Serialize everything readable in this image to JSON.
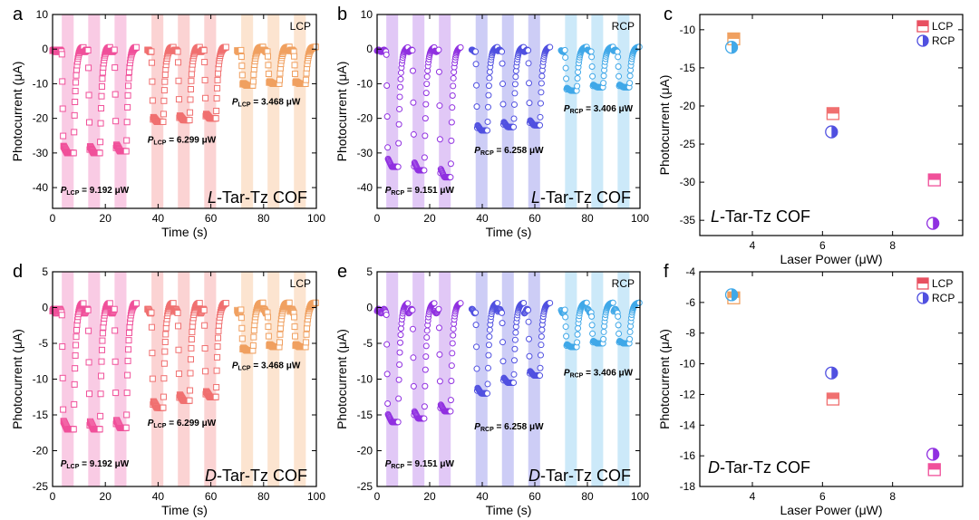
{
  "chart_data": [
    {
      "id": "a",
      "type": "scatter",
      "panel_label": "a",
      "polarization": "LCP",
      "marker": "square",
      "cof_label": {
        "prefix": "L",
        "suffix": "-Tar-Tz COF"
      },
      "xlabel": "Time (s)",
      "ylabel": "Photocurrent (μA)",
      "xlim": [
        0,
        100
      ],
      "ylim": [
        -46,
        10
      ],
      "xticks": [
        0,
        20,
        40,
        60,
        80,
        100
      ],
      "yticks": [
        -40,
        -30,
        -20,
        -10,
        0,
        10
      ],
      "groups": [
        {
          "color": "#f0509a",
          "band_color": "#f7b5d8",
          "power_text": "9.192 μW",
          "power_sub": "LCP",
          "power_at": [
            3,
            -41.5
          ],
          "pulses": [
            {
              "t_on": 3.5,
              "t_off": 8,
              "min": -30
            },
            {
              "t_on": 13.5,
              "t_off": 18,
              "min": -30
            },
            {
              "t_on": 23.5,
              "t_off": 28,
              "min": -29.5
            }
          ]
        },
        {
          "color": "#f07070",
          "band_color": "#fac0c0",
          "power_text": "6.299 μW",
          "power_sub": "LCP",
          "power_at": [
            36,
            -27
          ],
          "pulses": [
            {
              "t_on": 37.5,
              "t_off": 42,
              "min": -21
            },
            {
              "t_on": 47.5,
              "t_off": 52,
              "min": -20.5
            },
            {
              "t_on": 57.5,
              "t_off": 62,
              "min": -20
            }
          ]
        },
        {
          "color": "#f0a060",
          "band_color": "#fbd8bc",
          "power_text": "3.468 μW",
          "power_sub": "LCP",
          "power_at": [
            68,
            -16
          ],
          "pulses": [
            {
              "t_on": 71.5,
              "t_off": 76,
              "min": -10.5
            },
            {
              "t_on": 81.5,
              "t_off": 86,
              "min": -10
            },
            {
              "t_on": 91.5,
              "t_off": 96,
              "min": -10
            }
          ]
        }
      ]
    },
    {
      "id": "b",
      "type": "scatter",
      "panel_label": "b",
      "polarization": "RCP",
      "marker": "circle",
      "cof_label": {
        "prefix": "L",
        "suffix": "-Tar-Tz COF"
      },
      "xlabel": "Time (s)",
      "ylabel": "Photocurrent (μA)",
      "xlim": [
        0,
        100
      ],
      "ylim": [
        -46,
        10
      ],
      "xticks": [
        0,
        20,
        40,
        60,
        80,
        100
      ],
      "yticks": [
        -40,
        -30,
        -20,
        -10,
        0,
        10
      ],
      "groups": [
        {
          "color": "#9030e0",
          "band_color": "#d4b0f2",
          "power_text": "9.151 μW",
          "power_sub": "RCP",
          "power_at": [
            3,
            -41.5
          ],
          "pulses": [
            {
              "t_on": 3.5,
              "t_off": 8,
              "min": -34
            },
            {
              "t_on": 13.5,
              "t_off": 18,
              "min": -35
            },
            {
              "t_on": 23.5,
              "t_off": 28,
              "min": -37
            }
          ]
        },
        {
          "color": "#5050e0",
          "band_color": "#b8b8f2",
          "power_text": "6.258 μW",
          "power_sub": "RCP",
          "power_at": [
            37,
            -30
          ],
          "pulses": [
            {
              "t_on": 37.5,
              "t_off": 42,
              "min": -23.5
            },
            {
              "t_on": 47.5,
              "t_off": 52,
              "min": -22.5
            },
            {
              "t_on": 57.5,
              "t_off": 62,
              "min": -22
            }
          ]
        },
        {
          "color": "#40a8e8",
          "band_color": "#b6e0f6",
          "power_text": "3.406 μW",
          "power_sub": "RCP",
          "power_at": [
            71,
            -18
          ],
          "pulses": [
            {
              "t_on": 71.5,
              "t_off": 76,
              "min": -12
            },
            {
              "t_on": 81.5,
              "t_off": 86,
              "min": -11
            },
            {
              "t_on": 91.5,
              "t_off": 96,
              "min": -11
            }
          ]
        }
      ]
    },
    {
      "id": "c",
      "type": "scatter",
      "panel_label": "c",
      "cof_label": {
        "prefix": "L",
        "suffix": "-Tar-Tz COF"
      },
      "xlabel": "Laser Power (μW)",
      "ylabel": "Photocurrent (μA)",
      "xlim": [
        2.5,
        10
      ],
      "ylim": [
        -37,
        -8
      ],
      "xticks": [
        4,
        6,
        8
      ],
      "yticks": [
        -35,
        -30,
        -25,
        -20,
        -15,
        -10
      ],
      "legend": [
        {
          "name": "LCP",
          "color": "#e85060",
          "marker": "square"
        },
        {
          "name": "RCP",
          "color": "#5050e0",
          "marker": "circle"
        }
      ],
      "series": [
        {
          "name": "LCP",
          "marker": "square",
          "points": [
            {
              "x": 3.468,
              "y": -11.2,
              "color": "#f0a060"
            },
            {
              "x": 6.299,
              "y": -21,
              "color": "#f07070"
            },
            {
              "x": 9.192,
              "y": -29.7,
              "color": "#f0509a"
            }
          ]
        },
        {
          "name": "RCP",
          "marker": "circle",
          "points": [
            {
              "x": 3.406,
              "y": -12.3,
              "color": "#40a8e8"
            },
            {
              "x": 6.258,
              "y": -23.4,
              "color": "#5050e0"
            },
            {
              "x": 9.151,
              "y": -35.4,
              "color": "#9030e0"
            }
          ]
        }
      ]
    },
    {
      "id": "d",
      "type": "scatter",
      "panel_label": "d",
      "polarization": "LCP",
      "marker": "square",
      "cof_label": {
        "prefix": "D",
        "suffix": "-Tar-Tz COF"
      },
      "xlabel": "Time (s)",
      "ylabel": "Photocurrent (μA)",
      "xlim": [
        0,
        100
      ],
      "ylim": [
        -25,
        5
      ],
      "xticks": [
        0,
        20,
        40,
        60,
        80,
        100
      ],
      "yticks": [
        -25,
        -20,
        -15,
        -10,
        -5,
        0,
        5
      ],
      "groups": [
        {
          "color": "#f0509a",
          "band_color": "#f7b5d8",
          "power_text": "9.192 μW",
          "power_sub": "LCP",
          "power_at": [
            3,
            -22.2
          ],
          "pulses": [
            {
              "t_on": 3.5,
              "t_off": 8,
              "min": -17
            },
            {
              "t_on": 13.5,
              "t_off": 18,
              "min": -17
            },
            {
              "t_on": 23.5,
              "t_off": 28,
              "min": -16.8
            }
          ]
        },
        {
          "color": "#f07070",
          "band_color": "#fac0c0",
          "power_text": "6.299 μW",
          "power_sub": "LCP",
          "power_at": [
            36,
            -16.5
          ],
          "pulses": [
            {
              "t_on": 37.5,
              "t_off": 42,
              "min": -14
            },
            {
              "t_on": 47.5,
              "t_off": 52,
              "min": -13
            },
            {
              "t_on": 57.5,
              "t_off": 62,
              "min": -12.5
            }
          ]
        },
        {
          "color": "#f0a060",
          "band_color": "#fbd8bc",
          "power_text": "3.468 μW",
          "power_sub": "LCP",
          "power_at": [
            68,
            -8.5
          ],
          "pulses": [
            {
              "t_on": 71.5,
              "t_off": 76,
              "min": -6
            },
            {
              "t_on": 81.5,
              "t_off": 86,
              "min": -5.5
            },
            {
              "t_on": 91.5,
              "t_off": 96,
              "min": -5.5
            }
          ]
        }
      ]
    },
    {
      "id": "e",
      "type": "scatter",
      "panel_label": "e",
      "polarization": "RCP",
      "marker": "circle",
      "cof_label": {
        "prefix": "D",
        "suffix": "-Tar-Tz COF"
      },
      "xlabel": "Time (s)",
      "ylabel": "Photocurrent (μA)",
      "xlim": [
        0,
        100
      ],
      "ylim": [
        -25,
        5
      ],
      "xticks": [
        0,
        20,
        40,
        60,
        80,
        100
      ],
      "yticks": [
        -25,
        -20,
        -15,
        -10,
        -5,
        0,
        5
      ],
      "groups": [
        {
          "color": "#9030e0",
          "band_color": "#d4b0f2",
          "power_text": "9.151 μW",
          "power_sub": "RCP",
          "power_at": [
            3,
            -22.2
          ],
          "pulses": [
            {
              "t_on": 3.5,
              "t_off": 8,
              "min": -16
            },
            {
              "t_on": 13.5,
              "t_off": 18,
              "min": -15.5
            },
            {
              "t_on": 23.5,
              "t_off": 28,
              "min": -14.5
            }
          ]
        },
        {
          "color": "#5050e0",
          "band_color": "#b8b8f2",
          "power_text": "6.258 μW",
          "power_sub": "RCP",
          "power_at": [
            37,
            -17
          ],
          "pulses": [
            {
              "t_on": 37.5,
              "t_off": 42,
              "min": -12
            },
            {
              "t_on": 47.5,
              "t_off": 52,
              "min": -10.5
            },
            {
              "t_on": 57.5,
              "t_off": 62,
              "min": -9.5
            }
          ]
        },
        {
          "color": "#40a8e8",
          "band_color": "#b6e0f6",
          "power_text": "3.406 μW",
          "power_sub": "RCP",
          "power_at": [
            71,
            -9.5
          ],
          "pulses": [
            {
              "t_on": 71.5,
              "t_off": 76,
              "min": -5.5
            },
            {
              "t_on": 81.5,
              "t_off": 86,
              "min": -5
            },
            {
              "t_on": 91.5,
              "t_off": 96,
              "min": -5
            }
          ]
        }
      ]
    },
    {
      "id": "f",
      "type": "scatter",
      "panel_label": "f",
      "cof_label": {
        "prefix": "D",
        "suffix": "-Tar-Tz COF"
      },
      "xlabel": "Laser Power (μW)",
      "ylabel": "Photocurrent (μA)",
      "xlim": [
        2.5,
        10
      ],
      "ylim": [
        -18,
        -4
      ],
      "xticks": [
        4,
        6,
        8
      ],
      "yticks": [
        -18,
        -16,
        -14,
        -12,
        -10,
        -8,
        -6,
        -4
      ],
      "legend": [
        {
          "name": "LCP",
          "color": "#e85060",
          "marker": "square"
        },
        {
          "name": "RCP",
          "color": "#5050e0",
          "marker": "circle"
        }
      ],
      "series": [
        {
          "name": "LCP",
          "marker": "square",
          "points": [
            {
              "x": 3.468,
              "y": -5.7,
              "color": "#f0a060"
            },
            {
              "x": 6.299,
              "y": -12.3,
              "color": "#f07070"
            },
            {
              "x": 9.192,
              "y": -16.9,
              "color": "#f0509a"
            }
          ]
        },
        {
          "name": "RCP",
          "marker": "circle",
          "points": [
            {
              "x": 3.406,
              "y": -5.5,
              "color": "#40a8e8"
            },
            {
              "x": 6.258,
              "y": -10.6,
              "color": "#5050e0"
            },
            {
              "x": 9.151,
              "y": -15.9,
              "color": "#9030e0"
            }
          ]
        }
      ]
    }
  ]
}
